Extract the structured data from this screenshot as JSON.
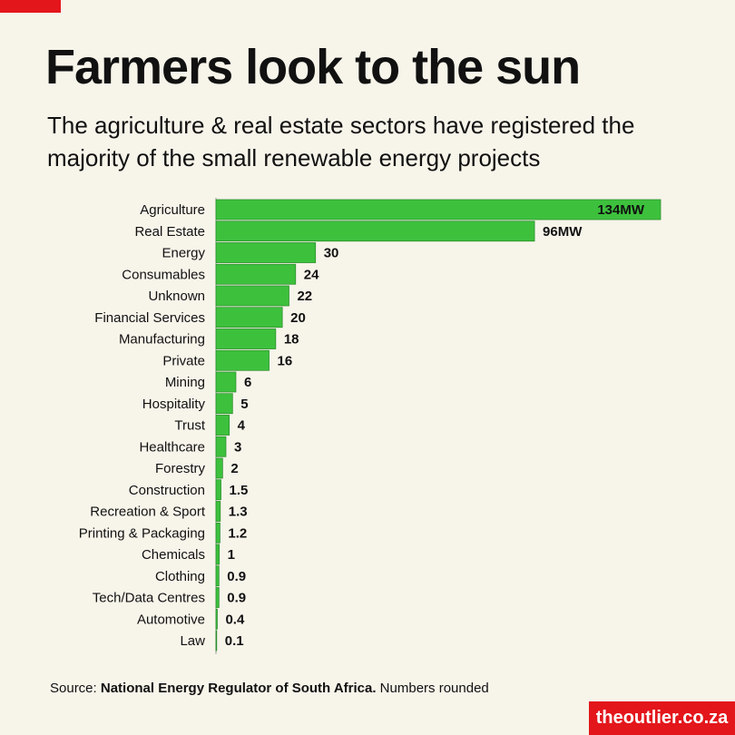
{
  "title": "Farmers look to the sun",
  "subtitle": "The agriculture & real estate sectors have registered the majority of the small renewable energy projects",
  "source": {
    "prefix": "Source: ",
    "name": "National Energy Regulator of South Africa.",
    "suffix": " Numbers rounded"
  },
  "brand": "theoutlier.co.za",
  "colors": {
    "bar": "#3dc13d",
    "bar_stroke": "#2b8f2b",
    "accent": "#e3161b",
    "background": "#f7f4ea"
  },
  "chart_data": {
    "type": "bar",
    "orientation": "horizontal",
    "title": "",
    "xlabel": "",
    "ylabel": "",
    "xlim": [
      0,
      134
    ],
    "grid": false,
    "legend": "none",
    "categories": [
      "Agriculture",
      "Real Estate",
      "Energy",
      "Consumables",
      "Unknown",
      "Financial Services",
      "Manufacturing",
      "Private",
      "Mining",
      "Hospitality",
      "Trust",
      "Healthcare",
      "Forestry",
      "Construction",
      "Recreation & Sport",
      "Printing & Packaging",
      "Chemicals",
      "Clothing",
      "Tech/Data Centres",
      "Automotive",
      "Law"
    ],
    "values": [
      134,
      96,
      30,
      24,
      22,
      20,
      18,
      16,
      6,
      5,
      4,
      3,
      2,
      1.5,
      1.3,
      1.2,
      1,
      0.9,
      0.9,
      0.4,
      0.1
    ],
    "data_labels": [
      "134MW",
      "96MW",
      "30",
      "24",
      "22",
      "20",
      "18",
      "16",
      "6",
      "5",
      "4",
      "3",
      "2",
      "1.5",
      "1.3",
      "1.2",
      "1",
      "0.9",
      "0.9",
      "0.4",
      "0.1"
    ]
  }
}
